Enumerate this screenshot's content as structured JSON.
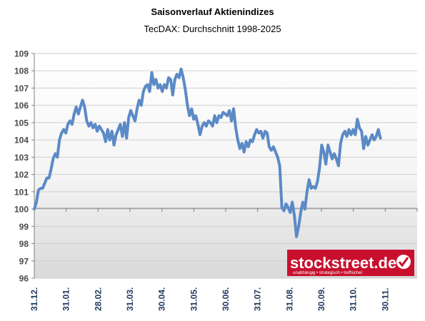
{
  "chart_data": {
    "type": "line",
    "title": "Saisonverlauf Aktienindizes",
    "subtitle": "TecDAX: Durchschnitt 1998-2025",
    "xlabel": "",
    "ylabel": "",
    "ylim": [
      96,
      109
    ],
    "y_ticks": [
      "96",
      "97",
      "98",
      "99",
      "100",
      "101",
      "102",
      "103",
      "104",
      "105",
      "106",
      "107",
      "108",
      "109"
    ],
    "x_tick_labels": [
      "31.12.",
      "31.01.",
      "28.02.",
      "31.03.",
      "30.04.",
      "31.05.",
      "30.06.",
      "31.07.",
      "31.08.",
      "30.09.",
      "31.10.",
      "30.11."
    ],
    "x_range_days": [
      0,
      365
    ],
    "grid": "horizontal",
    "line_color": "#5b8ac6",
    "series": [
      {
        "points": [
          [
            0,
            100.0
          ],
          [
            2,
            100.4
          ],
          [
            4,
            101.1
          ],
          [
            6,
            101.2
          ],
          [
            8,
            101.2
          ],
          [
            10,
            101.5
          ],
          [
            12,
            101.8
          ],
          [
            14,
            101.8
          ],
          [
            16,
            102.3
          ],
          [
            18,
            102.9
          ],
          [
            20,
            103.2
          ],
          [
            22,
            103.0
          ],
          [
            24,
            104.0
          ],
          [
            26,
            104.4
          ],
          [
            28,
            104.6
          ],
          [
            30,
            104.4
          ],
          [
            32,
            104.9
          ],
          [
            34,
            105.1
          ],
          [
            36,
            104.9
          ],
          [
            38,
            105.5
          ],
          [
            40,
            105.9
          ],
          [
            42,
            105.5
          ],
          [
            44,
            105.9
          ],
          [
            46,
            106.3
          ],
          [
            48,
            105.9
          ],
          [
            50,
            105.1
          ],
          [
            52,
            104.8
          ],
          [
            54,
            105.0
          ],
          [
            56,
            104.7
          ],
          [
            58,
            104.9
          ],
          [
            60,
            104.5
          ],
          [
            62,
            104.8
          ],
          [
            64,
            104.6
          ],
          [
            66,
            104.4
          ],
          [
            68,
            103.9
          ],
          [
            70,
            104.6
          ],
          [
            72,
            104.0
          ],
          [
            74,
            104.5
          ],
          [
            76,
            103.7
          ],
          [
            78,
            104.3
          ],
          [
            80,
            104.6
          ],
          [
            82,
            104.9
          ],
          [
            84,
            104.2
          ],
          [
            86,
            105.0
          ],
          [
            88,
            104.1
          ],
          [
            90,
            105.3
          ],
          [
            92,
            105.7
          ],
          [
            94,
            105.4
          ],
          [
            96,
            105.1
          ],
          [
            98,
            105.8
          ],
          [
            100,
            106.3
          ],
          [
            102,
            106.0
          ],
          [
            104,
            106.8
          ],
          [
            106,
            107.1
          ],
          [
            108,
            107.2
          ],
          [
            110,
            106.8
          ],
          [
            112,
            107.9
          ],
          [
            114,
            107.2
          ],
          [
            116,
            107.5
          ],
          [
            118,
            107.0
          ],
          [
            120,
            107.2
          ],
          [
            122,
            106.8
          ],
          [
            124,
            107.2
          ],
          [
            126,
            107.0
          ],
          [
            128,
            107.6
          ],
          [
            130,
            107.5
          ],
          [
            132,
            106.6
          ],
          [
            134,
            107.5
          ],
          [
            136,
            107.8
          ],
          [
            138,
            107.6
          ],
          [
            140,
            108.1
          ],
          [
            142,
            107.6
          ],
          [
            144,
            106.9
          ],
          [
            146,
            106.0
          ],
          [
            148,
            105.4
          ],
          [
            150,
            105.8
          ],
          [
            152,
            105.2
          ],
          [
            154,
            105.4
          ],
          [
            156,
            104.9
          ],
          [
            158,
            104.3
          ],
          [
            160,
            104.8
          ],
          [
            162,
            105.0
          ],
          [
            164,
            104.8
          ],
          [
            166,
            105.1
          ],
          [
            168,
            105.0
          ],
          [
            170,
            104.8
          ],
          [
            172,
            105.4
          ],
          [
            174,
            105.0
          ],
          [
            176,
            105.4
          ],
          [
            178,
            105.3
          ],
          [
            180,
            105.6
          ],
          [
            182,
            105.5
          ],
          [
            184,
            105.4
          ],
          [
            186,
            105.7
          ],
          [
            188,
            105.1
          ],
          [
            190,
            105.8
          ],
          [
            192,
            104.7
          ],
          [
            194,
            104.0
          ],
          [
            196,
            103.5
          ],
          [
            198,
            103.8
          ],
          [
            200,
            103.3
          ],
          [
            202,
            103.9
          ],
          [
            204,
            103.6
          ],
          [
            206,
            104.0
          ],
          [
            208,
            103.9
          ],
          [
            210,
            104.3
          ],
          [
            212,
            104.6
          ],
          [
            214,
            104.4
          ],
          [
            216,
            104.5
          ],
          [
            218,
            104.1
          ],
          [
            220,
            104.5
          ],
          [
            222,
            104.4
          ],
          [
            224,
            103.6
          ],
          [
            226,
            103.4
          ],
          [
            228,
            103.6
          ],
          [
            230,
            103.3
          ],
          [
            232,
            103.0
          ],
          [
            234,
            102.5
          ],
          [
            236,
            100.1
          ],
          [
            238,
            99.9
          ],
          [
            240,
            100.3
          ],
          [
            242,
            100.1
          ],
          [
            244,
            99.8
          ],
          [
            246,
            100.4
          ],
          [
            248,
            99.6
          ],
          [
            250,
            98.4
          ],
          [
            252,
            99.0
          ],
          [
            254,
            99.8
          ],
          [
            256,
            100.4
          ],
          [
            258,
            100.0
          ],
          [
            260,
            101.0
          ],
          [
            262,
            101.7
          ],
          [
            264,
            101.2
          ],
          [
            266,
            101.3
          ],
          [
            268,
            101.2
          ],
          [
            270,
            101.6
          ],
          [
            272,
            102.4
          ],
          [
            274,
            103.7
          ],
          [
            276,
            103.3
          ],
          [
            278,
            102.6
          ],
          [
            280,
            103.7
          ],
          [
            282,
            103.3
          ],
          [
            284,
            102.9
          ],
          [
            286,
            103.2
          ],
          [
            288,
            102.9
          ],
          [
            290,
            102.5
          ],
          [
            292,
            103.8
          ],
          [
            294,
            104.3
          ],
          [
            296,
            104.5
          ],
          [
            298,
            104.2
          ],
          [
            300,
            104.6
          ],
          [
            302,
            104.3
          ],
          [
            304,
            104.6
          ],
          [
            306,
            104.3
          ],
          [
            308,
            105.2
          ],
          [
            310,
            104.7
          ],
          [
            312,
            104.5
          ],
          [
            314,
            103.5
          ],
          [
            316,
            104.2
          ],
          [
            318,
            103.7
          ],
          [
            320,
            104.0
          ],
          [
            322,
            104.3
          ],
          [
            324,
            104.0
          ],
          [
            326,
            104.2
          ],
          [
            328,
            104.6
          ],
          [
            330,
            104.1
          ]
        ]
      }
    ]
  },
  "watermark": {
    "brand": "stockstreet.de",
    "tagline": "unabhängig • strategisch • treffsicher",
    "bg_color": "#c8102e"
  }
}
